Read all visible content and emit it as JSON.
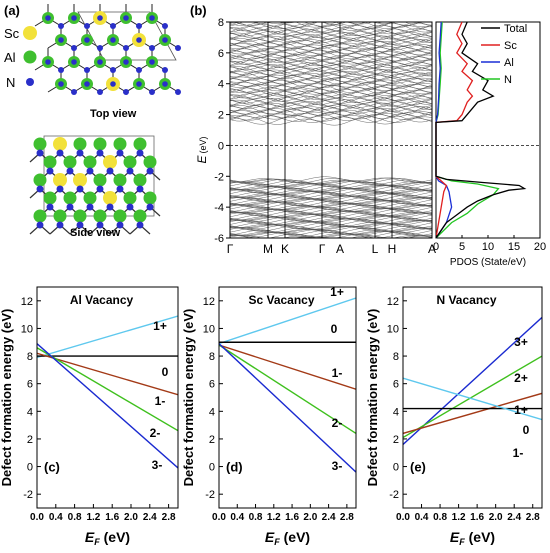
{
  "figure": {
    "panel_a": {
      "label": "(a)",
      "legend": [
        {
          "name": "Sc",
          "color": "#f2e13a"
        },
        {
          "name": "Al",
          "color": "#3fbf2f"
        },
        {
          "name": "N",
          "color": "#2a2fc9"
        }
      ],
      "top_caption": "Top view",
      "side_caption": "Side view"
    },
    "panel_b": {
      "label": "(b)",
      "ylabel": "E",
      "ylabel_unit": "(eV)",
      "y_ticks": [
        "8",
        "6",
        "4",
        "2",
        "0",
        "-2",
        "-4",
        "-6"
      ],
      "k_labels": [
        "Γ",
        "M",
        "K",
        "Γ",
        "A",
        "L",
        "H",
        "A"
      ],
      "pdos_xlabel": "PDOS (State/eV)",
      "pdos_ticks": [
        "0",
        "5",
        "10",
        "15",
        "20"
      ],
      "pdos_legend": [
        {
          "name": "Total",
          "color": "#000000"
        },
        {
          "name": "Sc",
          "color": "#e02020"
        },
        {
          "name": "Al",
          "color": "#1a2fd6"
        },
        {
          "name": "N",
          "color": "#22c622"
        }
      ]
    },
    "bottom": {
      "ylabel": "Defect formation energy (eV)",
      "xlabel_main": "E",
      "xlabel_sub": "F",
      "xlabel_unit": " (eV)"
    }
  },
  "chart_data": [
    {
      "type": "line",
      "id": "band-structure",
      "ylabel": "E (eV)",
      "ylim": [
        -6,
        8
      ],
      "k_path": [
        "Γ",
        "M",
        "K",
        "Γ",
        "A",
        "L",
        "H",
        "A"
      ],
      "fermi_level": 0,
      "valence_band_range": [
        -6,
        -2.4
      ],
      "conduction_band_min": 1.5,
      "grid": false
    },
    {
      "type": "line",
      "id": "pdos",
      "xlabel": "PDOS (State/eV)",
      "xlim": [
        0,
        20
      ],
      "ylim": [
        -6,
        8
      ],
      "legend_position": "top-right",
      "series": [
        {
          "name": "Total",
          "color": "#000000",
          "points": [
            [
              0,
              -6
            ],
            [
              1,
              -5.5
            ],
            [
              2,
              -5
            ],
            [
              4,
              -4.5
            ],
            [
              6,
              -4
            ],
            [
              8,
              -3.6
            ],
            [
              11,
              -3.2
            ],
            [
              14,
              -2.9
            ],
            [
              17,
              -2.8
            ],
            [
              16,
              -2.6
            ],
            [
              9,
              -2.4
            ],
            [
              2,
              -2.2
            ],
            [
              0,
              -2
            ],
            [
              0,
              1.5
            ],
            [
              5,
              1.6
            ],
            [
              6,
              2
            ],
            [
              8,
              2.8
            ],
            [
              11,
              3.2
            ],
            [
              9,
              3.6
            ],
            [
              10,
              4.2
            ],
            [
              7,
              4.8
            ],
            [
              8,
              5.3
            ],
            [
              5,
              6
            ],
            [
              6,
              6.6
            ],
            [
              5,
              7.2
            ],
            [
              6,
              8
            ]
          ]
        },
        {
          "name": "Sc",
          "color": "#e02020",
          "points": [
            [
              0,
              -6
            ],
            [
              0.5,
              -5
            ],
            [
              1,
              -4
            ],
            [
              1.5,
              -3
            ],
            [
              2,
              -2.6
            ],
            [
              1,
              -2.3
            ],
            [
              0,
              -2
            ],
            [
              0,
              1.5
            ],
            [
              4,
              1.6
            ],
            [
              5,
              2
            ],
            [
              6,
              2.8
            ],
            [
              7,
              3.2
            ],
            [
              6,
              3.6
            ],
            [
              7,
              4.2
            ],
            [
              5,
              4.8
            ],
            [
              6,
              5.3
            ],
            [
              4,
              6
            ],
            [
              5,
              6.6
            ],
            [
              4,
              7.2
            ],
            [
              5,
              8
            ]
          ]
        },
        {
          "name": "Al",
          "color": "#1a2fd6",
          "points": [
            [
              0,
              -6
            ],
            [
              2,
              -5
            ],
            [
              3,
              -4
            ],
            [
              2.5,
              -3
            ],
            [
              2,
              -2.6
            ],
            [
              0.5,
              -2.3
            ],
            [
              0,
              -2
            ],
            [
              0,
              1.5
            ],
            [
              0.3,
              2
            ],
            [
              0.5,
              3
            ],
            [
              0.6,
              4
            ],
            [
              0.8,
              5
            ],
            [
              0.6,
              6
            ],
            [
              0.8,
              7
            ],
            [
              1,
              8
            ]
          ]
        },
        {
          "name": "N",
          "color": "#22c622",
          "points": [
            [
              0,
              -6
            ],
            [
              3,
              -5
            ],
            [
              6,
              -4.4
            ],
            [
              8,
              -3.8
            ],
            [
              11,
              -3.2
            ],
            [
              12,
              -2.8
            ],
            [
              8,
              -2.5
            ],
            [
              3,
              -2.3
            ],
            [
              0,
              -2
            ],
            [
              0,
              1.5
            ],
            [
              0.4,
              2
            ],
            [
              0.6,
              3
            ],
            [
              0.8,
              4
            ],
            [
              1,
              5
            ],
            [
              0.8,
              6
            ],
            [
              1,
              7
            ],
            [
              1.2,
              8
            ]
          ]
        }
      ]
    },
    {
      "type": "line",
      "id": "al-vacancy",
      "title": "Al Vacancy",
      "panel_label": "(c)",
      "xlabel": "E_F (eV)",
      "ylabel": "Defect formation energy (eV)",
      "xlim": [
        0,
        3.0
      ],
      "ylim": [
        -3,
        13
      ],
      "x_ticks": [
        "0.0",
        "0.4",
        "0.8",
        "1.2",
        "1.6",
        "2.0",
        "2.4",
        "2.8"
      ],
      "y_ticks": [
        "-2",
        "0",
        "2",
        "4",
        "6",
        "8",
        "10",
        "12"
      ],
      "series": [
        {
          "name": "1+",
          "color": "#5ec8ee",
          "x": [
            0,
            3.0
          ],
          "y": [
            7.9,
            10.9
          ]
        },
        {
          "name": "0",
          "color": "#000000",
          "x": [
            0,
            3.0
          ],
          "y": [
            8.0,
            8.0
          ]
        },
        {
          "name": "1-",
          "color": "#a33a17",
          "x": [
            0,
            3.0
          ],
          "y": [
            8.2,
            5.2
          ]
        },
        {
          "name": "2-",
          "color": "#3fc01e",
          "x": [
            0,
            3.0
          ],
          "y": [
            8.6,
            2.6
          ]
        },
        {
          "name": "3-",
          "color": "#1a2ad0",
          "x": [
            0,
            3.0
          ],
          "y": [
            8.9,
            -0.1
          ]
        }
      ]
    },
    {
      "type": "line",
      "id": "sc-vacancy",
      "title": "Sc Vacancy",
      "panel_label": "(d)",
      "xlabel": "E_F (eV)",
      "ylabel": "Defect formation energy (eV)",
      "xlim": [
        0,
        3.0
      ],
      "ylim": [
        -3,
        13
      ],
      "x_ticks": [
        "0.0",
        "0.4",
        "0.8",
        "1.2",
        "1.6",
        "2.0",
        "2.4",
        "2.8"
      ],
      "y_ticks": [
        "-2",
        "0",
        "2",
        "4",
        "6",
        "8",
        "10",
        "12"
      ],
      "series": [
        {
          "name": "1+",
          "color": "#5ec8ee",
          "x": [
            0,
            3.0
          ],
          "y": [
            8.9,
            12.2
          ]
        },
        {
          "name": "0",
          "color": "#000000",
          "x": [
            0,
            3.0
          ],
          "y": [
            9.0,
            9.0
          ]
        },
        {
          "name": "1-",
          "color": "#a33a17",
          "x": [
            0,
            3.0
          ],
          "y": [
            8.8,
            5.6
          ]
        },
        {
          "name": "2-",
          "color": "#3fc01e",
          "x": [
            0,
            3.0
          ],
          "y": [
            8.8,
            2.4
          ]
        },
        {
          "name": "3-",
          "color": "#1a2ad0",
          "x": [
            0,
            3.0
          ],
          "y": [
            8.9,
            -0.4
          ]
        }
      ]
    },
    {
      "type": "line",
      "id": "n-vacancy",
      "title": "N Vacancy",
      "panel_label": "(e)",
      "xlabel": "E_F (eV)",
      "ylabel": "Defect formation energy (eV)",
      "xlim": [
        0,
        3.0
      ],
      "ylim": [
        -3,
        13
      ],
      "x_ticks": [
        "0.0",
        "0.4",
        "0.8",
        "1.2",
        "1.6",
        "2.0",
        "2.4",
        "2.8"
      ],
      "y_ticks": [
        "-2",
        "0",
        "2",
        "4",
        "6",
        "8",
        "10",
        "12"
      ],
      "series": [
        {
          "name": "3+",
          "color": "#1a2ad0",
          "x": [
            0,
            3.0
          ],
          "y": [
            1.6,
            10.8
          ]
        },
        {
          "name": "2+",
          "color": "#3fc01e",
          "x": [
            0,
            3.0
          ],
          "y": [
            2.1,
            8.0
          ]
        },
        {
          "name": "1+",
          "color": "#a33a17",
          "x": [
            0,
            3.0
          ],
          "y": [
            2.4,
            5.3
          ]
        },
        {
          "name": "0",
          "color": "#000000",
          "x": [
            0,
            3.0
          ],
          "y": [
            4.2,
            4.2
          ]
        },
        {
          "name": "1-",
          "color": "#5ec8ee",
          "x": [
            0,
            3.0
          ],
          "y": [
            6.4,
            3.4
          ]
        }
      ]
    }
  ]
}
